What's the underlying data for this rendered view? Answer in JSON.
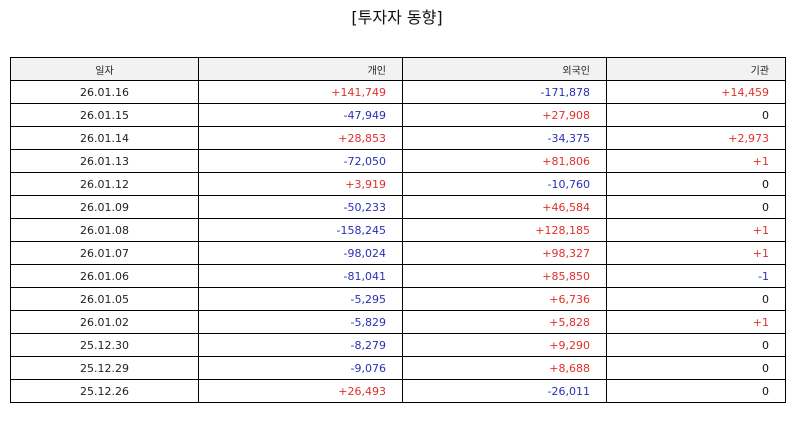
{
  "title": "[투자자 동향]",
  "table": {
    "headers": [
      "일자",
      "개인",
      "외국인",
      "기관"
    ],
    "rows": [
      {
        "date": "26.01.16",
        "individual": "+141,749",
        "foreign": "-171,878",
        "institution": "+14,459"
      },
      {
        "date": "26.01.15",
        "individual": "-47,949",
        "foreign": "+27,908",
        "institution": "0"
      },
      {
        "date": "26.01.14",
        "individual": "+28,853",
        "foreign": "-34,375",
        "institution": "+2,973"
      },
      {
        "date": "26.01.13",
        "individual": "-72,050",
        "foreign": "+81,806",
        "institution": "+1"
      },
      {
        "date": "26.01.12",
        "individual": "+3,919",
        "foreign": "-10,760",
        "institution": "0"
      },
      {
        "date": "26.01.09",
        "individual": "-50,233",
        "foreign": "+46,584",
        "institution": "0"
      },
      {
        "date": "26.01.08",
        "individual": "-158,245",
        "foreign": "+128,185",
        "institution": "+1"
      },
      {
        "date": "26.01.07",
        "individual": "-98,024",
        "foreign": "+98,327",
        "institution": "+1"
      },
      {
        "date": "26.01.06",
        "individual": "-81,041",
        "foreign": "+85,850",
        "institution": "-1"
      },
      {
        "date": "26.01.05",
        "individual": "-5,295",
        "foreign": "+6,736",
        "institution": "0"
      },
      {
        "date": "26.01.02",
        "individual": "-5,829",
        "foreign": "+5,828",
        "institution": "+1"
      },
      {
        "date": "25.12.30",
        "individual": "-8,279",
        "foreign": "+9,290",
        "institution": "0"
      },
      {
        "date": "25.12.29",
        "individual": "-9,076",
        "foreign": "+8,688",
        "institution": "0"
      },
      {
        "date": "25.12.26",
        "individual": "+26,493",
        "foreign": "-26,011",
        "institution": "0"
      }
    ]
  },
  "colors": {
    "positive": "#e0302b",
    "negative": "#2a2fb5",
    "zero": "#111111",
    "header_bg": "#f2f2f2",
    "border": "#000000"
  }
}
